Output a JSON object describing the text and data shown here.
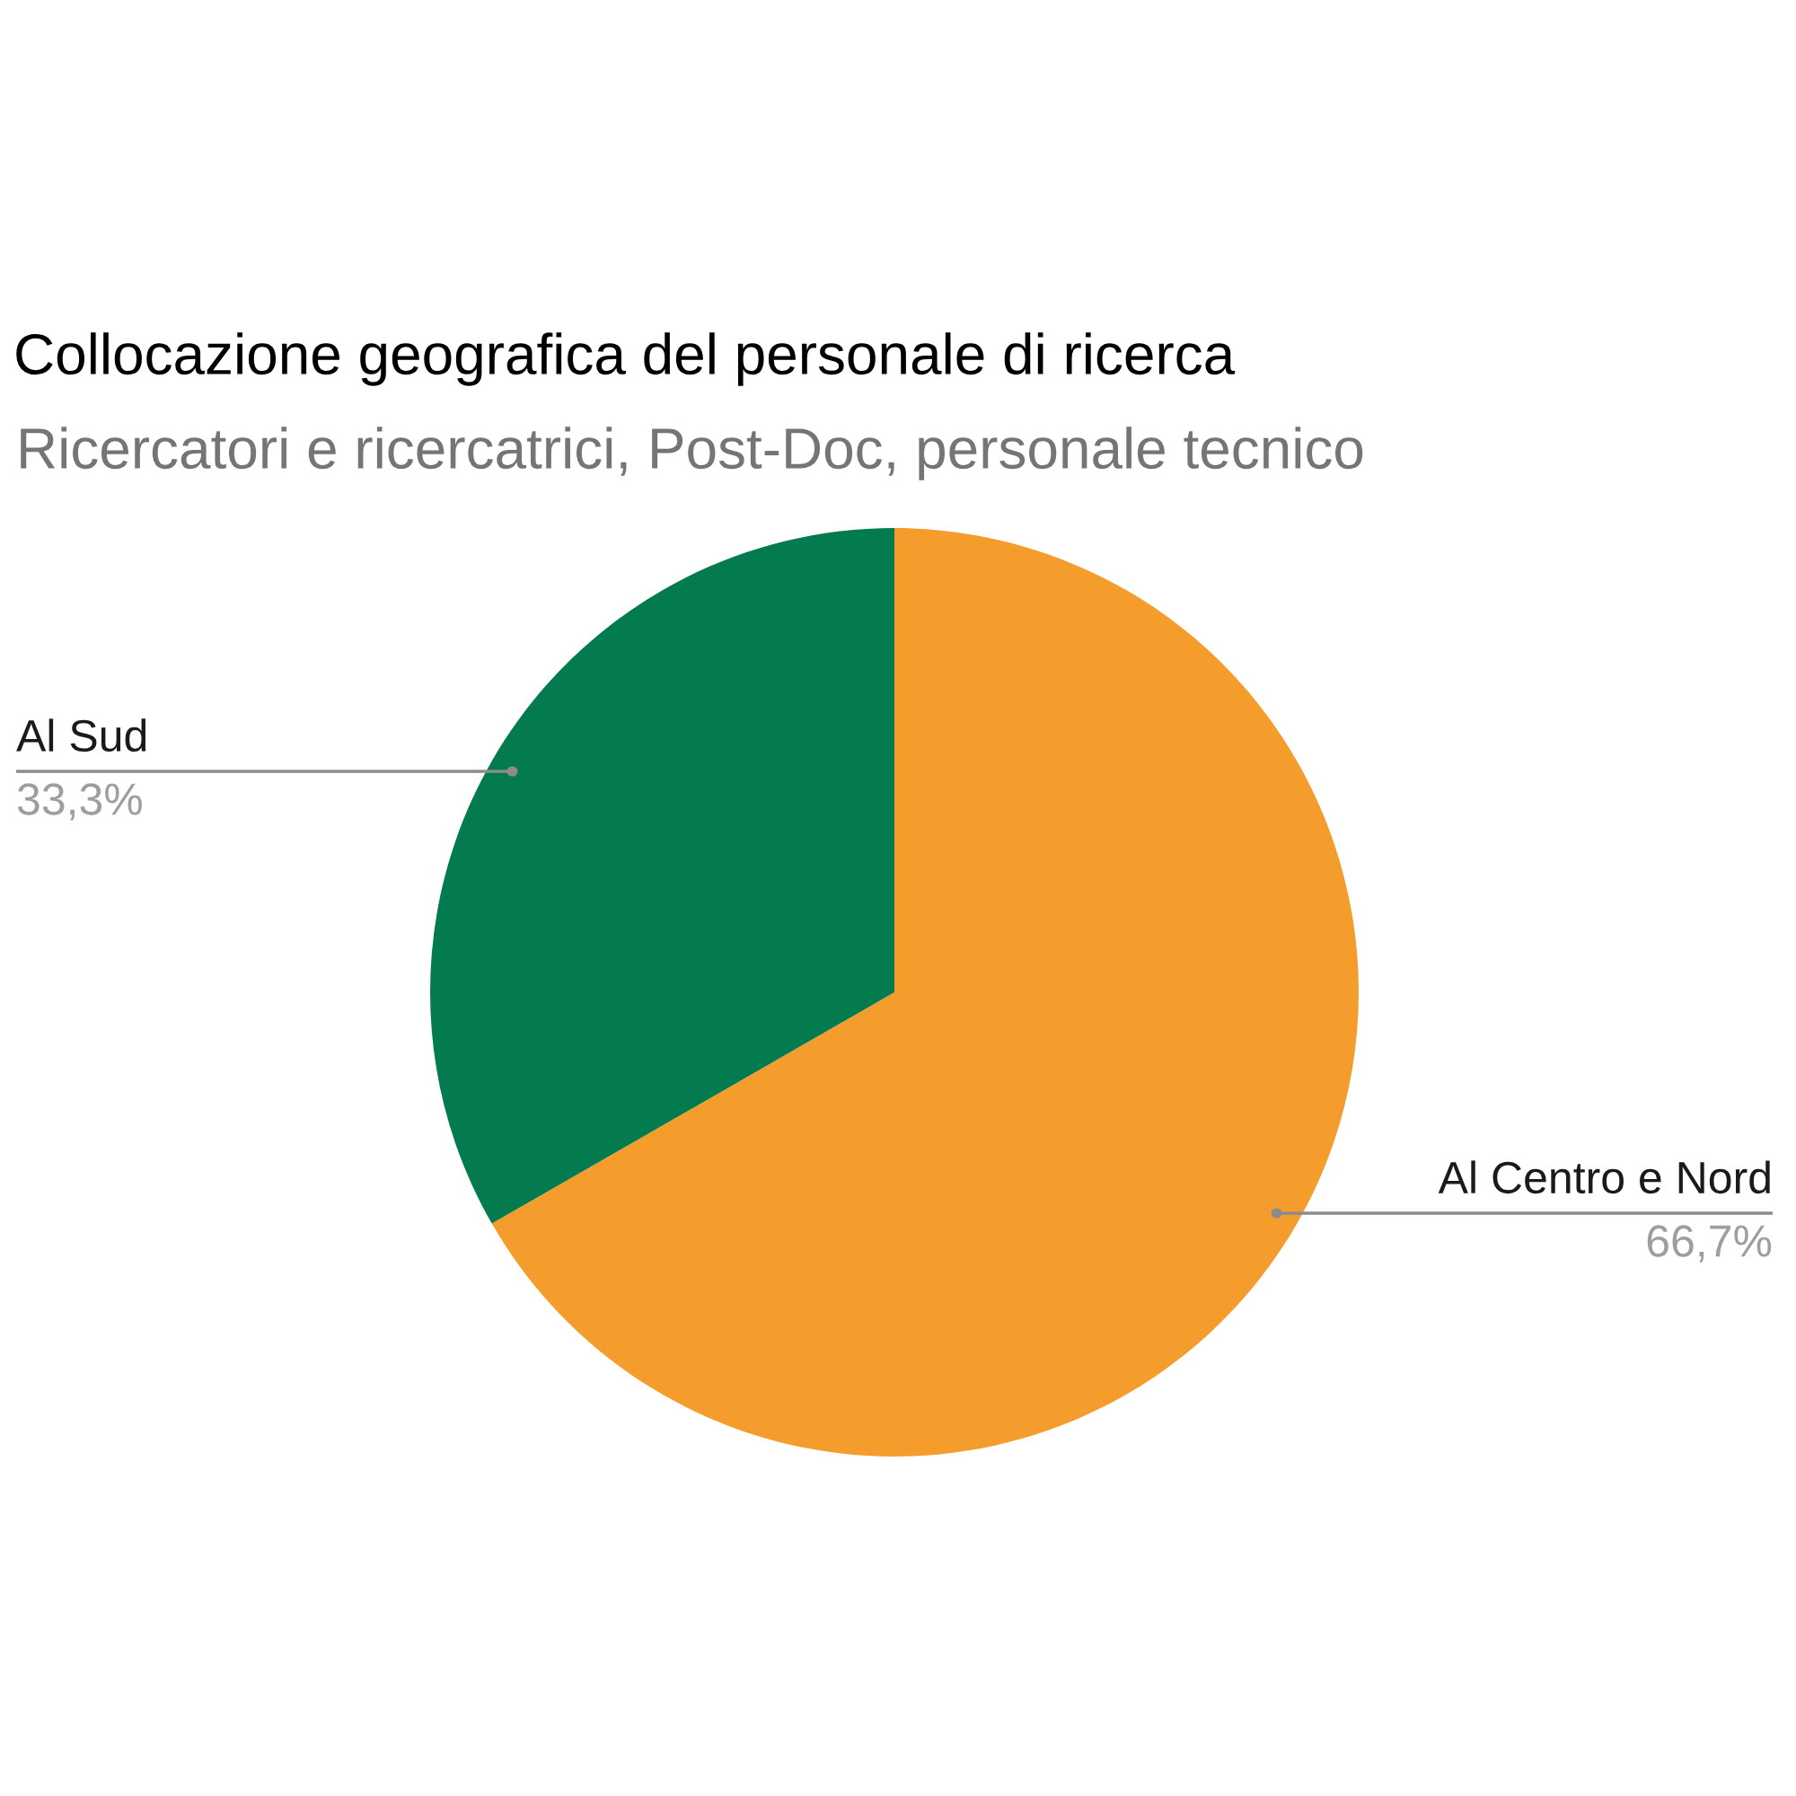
{
  "chart_data": {
    "type": "pie",
    "title": "Collocazione geografica del personale di ricerca",
    "subtitle": "Ricercatori e ricercatrici, Post-Doc, personale tecnico",
    "categories": [
      "Al Centro e Nord",
      "Al Sud"
    ],
    "values": [
      66.7,
      33.3
    ],
    "colors": [
      "#f59d2c",
      "#037b4f"
    ],
    "value_labels": [
      "66,7%",
      "33,3%"
    ]
  }
}
